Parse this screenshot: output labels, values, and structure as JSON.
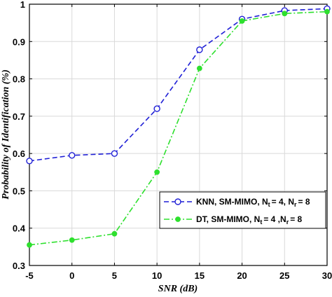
{
  "chart_data": {
    "type": "line",
    "xlabel": "SNR (dB)",
    "ylabel": "Probability of Identification (%)",
    "xlim": [
      -5,
      30
    ],
    "ylim": [
      0.3,
      1
    ],
    "x_ticks": [
      "-5",
      "0",
      "5",
      "10",
      "15",
      "20",
      "25",
      "30"
    ],
    "y_ticks": [
      "0.3",
      "0.4",
      "0.5",
      "0.6",
      "0.7",
      "0.8",
      "0.9",
      "1"
    ],
    "grid": true,
    "legend_position": "lower-right",
    "x": [
      -5,
      0,
      5,
      10,
      15,
      20,
      25,
      30
    ],
    "series": [
      {
        "name": "KNN, SM-MIMO, N_t = 4, N_r = 8",
        "legend_main": "KNN, SM-MIMO,  N",
        "legend_sub1": "t",
        "legend_mid": "= 4, N",
        "legend_sub2": "r",
        "legend_end": "= 8",
        "values": [
          0.58,
          0.595,
          0.6,
          0.72,
          0.878,
          0.96,
          0.983,
          0.988
        ],
        "color": "#1f1fd6",
        "line_style": "dashed",
        "marker": "open-circle"
      },
      {
        "name": "DT, SM-MIMO, N_t = 4, N_r = 8",
        "legend_main": "DT,    SM-MIMO,  N",
        "legend_sub1": "t",
        "legend_mid": "= 4 ,N",
        "legend_sub2": "r",
        "legend_end": "= 8",
        "values": [
          0.355,
          0.368,
          0.385,
          0.55,
          0.828,
          0.955,
          0.975,
          0.98
        ],
        "color": "#2ee02e",
        "line_style": "dash-dot",
        "marker": "filled-circle"
      }
    ]
  }
}
